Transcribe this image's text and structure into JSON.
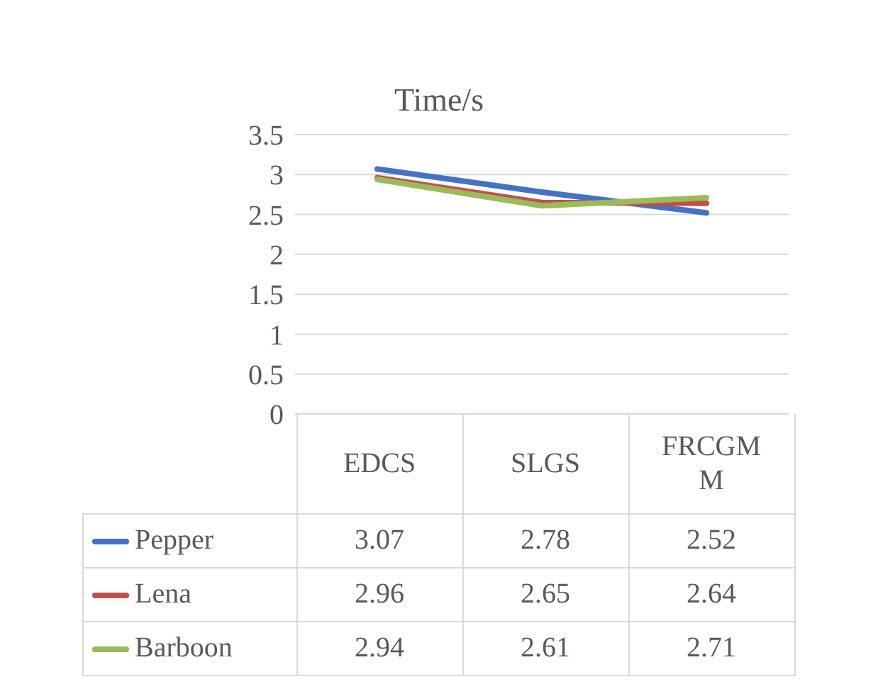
{
  "chart_data": {
    "type": "line",
    "title": "Time/s",
    "categories": [
      "EDCS",
      "SLGS",
      "FRCGMM"
    ],
    "series": [
      {
        "name": "Pepper",
        "color": "#4472c4",
        "values": [
          3.07,
          2.78,
          2.52
        ]
      },
      {
        "name": "Lena",
        "color": "#c0504d",
        "values": [
          2.96,
          2.65,
          2.64
        ]
      },
      {
        "name": "Barboon",
        "color": "#9bbb59",
        "values": [
          2.94,
          2.61,
          2.71
        ]
      }
    ],
    "ylim": [
      0,
      3.5
    ],
    "yticks": [
      0,
      0.5,
      1,
      1.5,
      2,
      2.5,
      3,
      3.5
    ],
    "grid": "y",
    "legend": "bottom left",
    "data_labels": true,
    "marker": "none",
    "line_style": "solid"
  }
}
